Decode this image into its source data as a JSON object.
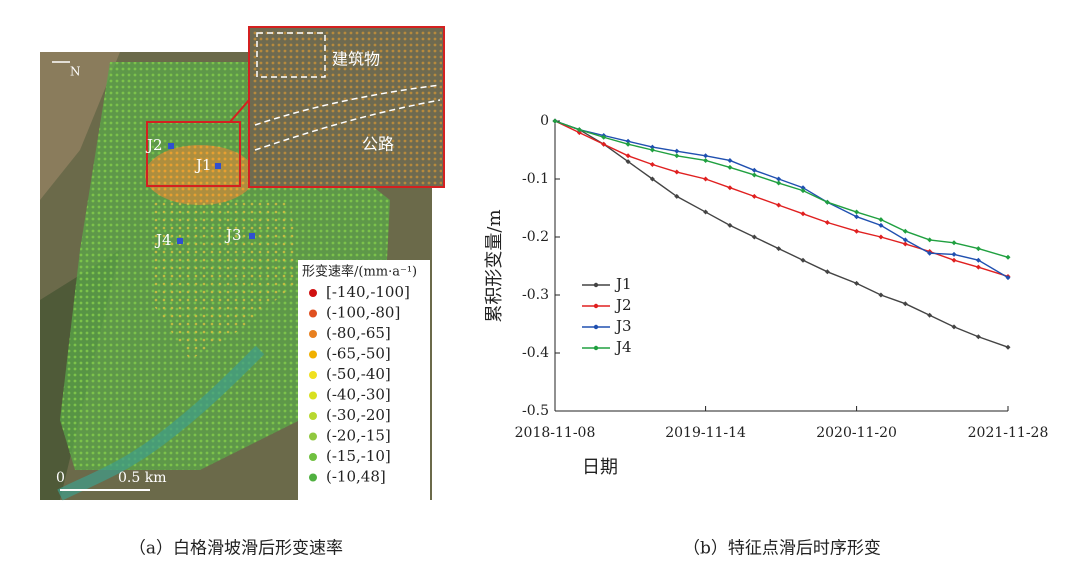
{
  "chart_data": {
    "type": "line",
    "x": [
      "2018-11-08",
      "2019-01-07",
      "2019-03-08",
      "2019-05-07",
      "2019-07-06",
      "2019-09-04",
      "2019-11-14",
      "2020-01-13",
      "2020-03-13",
      "2020-05-12",
      "2020-07-11",
      "2020-09-09",
      "2020-11-20",
      "2021-01-19",
      "2021-03-20",
      "2021-05-19",
      "2021-07-18",
      "2021-09-16",
      "2021-11-28"
    ],
    "series": [
      {
        "name": "J1",
        "color": "#444444",
        "values": [
          0,
          -0.015,
          -0.04,
          -0.07,
          -0.1,
          -0.13,
          -0.157,
          -0.18,
          -0.2,
          -0.22,
          -0.24,
          -0.26,
          -0.28,
          -0.3,
          -0.315,
          -0.335,
          -0.355,
          -0.372,
          -0.39
        ]
      },
      {
        "name": "J2",
        "color": "#e02020",
        "values": [
          0,
          -0.02,
          -0.04,
          -0.06,
          -0.075,
          -0.088,
          -0.1,
          -0.115,
          -0.13,
          -0.145,
          -0.16,
          -0.175,
          -0.19,
          -0.2,
          -0.212,
          -0.225,
          -0.24,
          -0.252,
          -0.268
        ]
      },
      {
        "name": "J3",
        "color": "#2050b0",
        "values": [
          0,
          -0.015,
          -0.025,
          -0.035,
          -0.045,
          -0.052,
          -0.06,
          -0.068,
          -0.085,
          -0.1,
          -0.115,
          -0.14,
          -0.165,
          -0.18,
          -0.205,
          -0.228,
          -0.23,
          -0.24,
          -0.27
        ]
      },
      {
        "name": "J4",
        "color": "#20a040",
        "values": [
          0,
          -0.015,
          -0.028,
          -0.04,
          -0.05,
          -0.06,
          -0.068,
          -0.08,
          -0.093,
          -0.107,
          -0.12,
          -0.14,
          -0.157,
          -0.17,
          -0.19,
          -0.205,
          -0.21,
          -0.22,
          -0.235
        ]
      }
    ],
    "xlim": [
      "2018-11-08",
      "2021-11-28"
    ],
    "xticks": [
      "2018-11-08",
      "2019-11-14",
      "2020-11-20",
      "2021-11-28"
    ],
    "ylim": [
      -0.5,
      0
    ],
    "yticks": [
      0,
      -0.1,
      -0.2,
      -0.3,
      -0.4,
      -0.5
    ],
    "xlabel": "日期",
    "ylabel": "累积形变量/m",
    "legend": "left",
    "grid": false
  },
  "map": {
    "north": "N",
    "scale_start": "0",
    "scale_end": "0.5 km",
    "points": [
      "J1",
      "J2",
      "J3",
      "J4"
    ],
    "inset_labels": [
      "建筑物",
      "公路"
    ],
    "legend_title": "形变速率/(mm·a⁻¹)",
    "legend": [
      {
        "label": "[-140,-100]",
        "color": "#d01010"
      },
      {
        "label": "(-100,-80]",
        "color": "#e05020"
      },
      {
        "label": "(-80,-65]",
        "color": "#e88020"
      },
      {
        "label": "(-65,-50]",
        "color": "#f0b000"
      },
      {
        "label": "(-50,-40]",
        "color": "#f0e020"
      },
      {
        "label": "(-40,-30]",
        "color": "#d8e020"
      },
      {
        "label": "(-30,-20]",
        "color": "#b8d830"
      },
      {
        "label": "(-20,-15]",
        "color": "#90c840"
      },
      {
        "label": "(-15,-10]",
        "color": "#70c040"
      },
      {
        "label": "(-10,48]",
        "color": "#50b040"
      }
    ]
  },
  "captions": [
    "（a）白格滑坡滑后形变速率",
    "（b）特征点滑后时序形变"
  ]
}
